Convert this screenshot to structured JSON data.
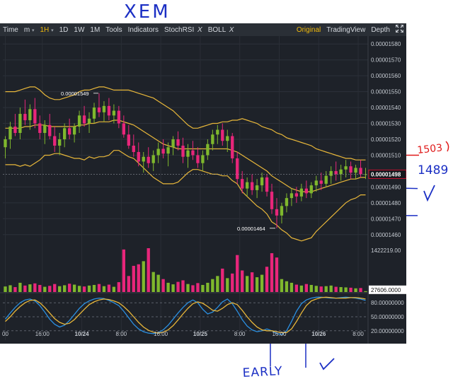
{
  "toolbar": {
    "time_label": "Time",
    "interval_m": "m",
    "interval_m_caret": "▾",
    "interval_1h": "1H",
    "interval_1h_caret": "▾",
    "interval_1d": "1D",
    "interval_1w": "1W",
    "interval_1mo": "1M",
    "tools_label": "Tools",
    "indicators_label": "Indicators",
    "stochrsi_label": "StochRSI",
    "stochrsi_close": "X",
    "boll_label": "BOLL",
    "boll_close": "X",
    "original_label": "Original",
    "tradingview_label": "TradingView",
    "depth_label": "Depth",
    "expand_icon": "expand-icon"
  },
  "annotations": {
    "title": "XEM",
    "label_1503": "1503",
    "label_1489": "1489",
    "label_early": "EARLY"
  },
  "colors": {
    "background": "#1e2229",
    "toolbar": "#2a2f36",
    "up": "#7fb82d",
    "down": "#e8267a",
    "boll_band": "#e8b73a",
    "stoch_k": "#2b8fe0",
    "stoch_d": "#e8b73a",
    "current_price_box": "#c8102e",
    "ink": "#1b2fc4",
    "ink_red": "#e01a1a"
  },
  "chart_data": {
    "type": "candlestick",
    "symbol": "XEM",
    "interval": "1H",
    "price_axis": {
      "range": [
        1.455e-05,
        1.585e-05
      ],
      "ticks": [
        "0.00001580",
        "0.00001570",
        "0.00001560",
        "0.00001550",
        "0.00001540",
        "0.00001530",
        "0.00001520",
        "0.00001510",
        "0.00001490",
        "0.00001480",
        "0.00001470",
        "0.00001460"
      ],
      "tick_values": [
        1.58e-05,
        1.57e-05,
        1.56e-05,
        1.55e-05,
        1.54e-05,
        1.53e-05,
        1.52e-05,
        1.51e-05,
        1.49e-05,
        1.48e-05,
        1.47e-05,
        1.46e-05
      ]
    },
    "current_price": "0.00001498",
    "current_price_value": 1.498e-05,
    "high_label": "0.00001549",
    "high_value": 1.549e-05,
    "low_label": "0.00001464",
    "low_value": 1.464e-05,
    "x_axis_labels": [
      "00",
      "16:00",
      "10/24",
      "8:00",
      "16:00",
      "10/25",
      "8:00",
      "16:00",
      "10/26",
      "8:00"
    ],
    "x_axis_label_index": [
      0,
      7.5,
      15.5,
      23.5,
      31.5,
      39.5,
      47.5,
      55.5,
      63.5,
      71.5
    ],
    "volume": {
      "max_label": "1422219.00",
      "max_value": 1422219,
      "current_label": "27606.0000",
      "current_value": 27606
    },
    "stoch_rsi": {
      "ticks": [
        "80.00000000",
        "50.00000000",
        "20.00000000"
      ],
      "tick_values": [
        80,
        50,
        20
      ],
      "range": [
        0,
        100
      ]
    },
    "candles": [
      {
        "o": 1.515e-05,
        "h": 1.522e-05,
        "l": 1.508e-05,
        "c": 1.52e-05,
        "v": 180000
      },
      {
        "o": 1.52e-05,
        "h": 1.531e-05,
        "l": 1.514e-05,
        "c": 1.528e-05,
        "v": 220000
      },
      {
        "o": 1.528e-05,
        "h": 1.536e-05,
        "l": 1.522e-05,
        "c": 1.524e-05,
        "v": 160000
      },
      {
        "o": 1.524e-05,
        "h": 1.54e-05,
        "l": 1.52e-05,
        "c": 1.536e-05,
        "v": 300000
      },
      {
        "o": 1.536e-05,
        "h": 1.545e-05,
        "l": 1.529e-05,
        "c": 1.532e-05,
        "v": 210000
      },
      {
        "o": 1.532e-05,
        "h": 1.542e-05,
        "l": 1.526e-05,
        "c": 1.539e-05,
        "v": 250000
      },
      {
        "o": 1.539e-05,
        "h": 1.546e-05,
        "l": 1.527e-05,
        "c": 1.53e-05,
        "v": 280000
      },
      {
        "o": 1.53e-05,
        "h": 1.535e-05,
        "l": 1.52e-05,
        "c": 1.524e-05,
        "v": 230000
      },
      {
        "o": 1.524e-05,
        "h": 1.532e-05,
        "l": 1.517e-05,
        "c": 1.529e-05,
        "v": 170000
      },
      {
        "o": 1.529e-05,
        "h": 1.536e-05,
        "l": 1.52e-05,
        "c": 1.522e-05,
        "v": 200000
      },
      {
        "o": 1.522e-05,
        "h": 1.528e-05,
        "l": 1.512e-05,
        "c": 1.516e-05,
        "v": 260000
      },
      {
        "o": 1.516e-05,
        "h": 1.524e-05,
        "l": 1.51e-05,
        "c": 1.52e-05,
        "v": 190000
      },
      {
        "o": 1.52e-05,
        "h": 1.53e-05,
        "l": 1.515e-05,
        "c": 1.527e-05,
        "v": 220000
      },
      {
        "o": 1.527e-05,
        "h": 1.533e-05,
        "l": 1.52e-05,
        "c": 1.523e-05,
        "v": 270000
      },
      {
        "o": 1.523e-05,
        "h": 1.53e-05,
        "l": 1.518e-05,
        "c": 1.528e-05,
        "v": 240000
      },
      {
        "o": 1.528e-05,
        "h": 1.538e-05,
        "l": 1.524e-05,
        "c": 1.535e-05,
        "v": 200000
      },
      {
        "o": 1.535e-05,
        "h": 1.541e-05,
        "l": 1.528e-05,
        "c": 1.53e-05,
        "v": 180000
      },
      {
        "o": 1.53e-05,
        "h": 1.537e-05,
        "l": 1.524e-05,
        "c": 1.533e-05,
        "v": 210000
      },
      {
        "o": 1.533e-05,
        "h": 1.543e-05,
        "l": 1.53e-05,
        "c": 1.54e-05,
        "v": 230000
      },
      {
        "o": 1.54e-05,
        "h": 1.549e-05,
        "l": 1.534e-05,
        "c": 1.537e-05,
        "v": 260000
      },
      {
        "o": 1.537e-05,
        "h": 1.544e-05,
        "l": 1.531e-05,
        "c": 1.541e-05,
        "v": 190000
      },
      {
        "o": 1.541e-05,
        "h": 1.546e-05,
        "l": 1.532e-05,
        "c": 1.535e-05,
        "v": 240000
      },
      {
        "o": 1.535e-05,
        "h": 1.542e-05,
        "l": 1.53e-05,
        "c": 1.538e-05,
        "v": 170000
      },
      {
        "o": 1.538e-05,
        "h": 1.541e-05,
        "l": 1.527e-05,
        "c": 1.53e-05,
        "v": 320000
      },
      {
        "o": 1.53e-05,
        "h": 1.535e-05,
        "l": 1.521e-05,
        "c": 1.523e-05,
        "v": 1380000
      },
      {
        "o": 1.523e-05,
        "h": 1.529e-05,
        "l": 1.514e-05,
        "c": 1.516e-05,
        "v": 520000
      },
      {
        "o": 1.516e-05,
        "h": 1.523e-05,
        "l": 1.509e-05,
        "c": 1.512e-05,
        "v": 850000
      },
      {
        "o": 1.512e-05,
        "h": 1.518e-05,
        "l": 1.503e-05,
        "c": 1.506e-05,
        "v": 900000
      },
      {
        "o": 1.506e-05,
        "h": 1.512e-05,
        "l": 1.499e-05,
        "c": 1.509e-05,
        "v": 1000000
      },
      {
        "o": 1.509e-05,
        "h": 1.515e-05,
        "l": 1.502e-05,
        "c": 1.505e-05,
        "v": 1422219
      },
      {
        "o": 1.505e-05,
        "h": 1.513e-05,
        "l": 1.5e-05,
        "c": 1.51e-05,
        "v": 650000
      },
      {
        "o": 1.51e-05,
        "h": 1.518e-05,
        "l": 1.505e-05,
        "c": 1.514e-05,
        "v": 560000
      },
      {
        "o": 1.514e-05,
        "h": 1.52e-05,
        "l": 1.508e-05,
        "c": 1.511e-05,
        "v": 420000
      },
      {
        "o": 1.511e-05,
        "h": 1.518e-05,
        "l": 1.503e-05,
        "c": 1.515e-05,
        "v": 300000
      },
      {
        "o": 1.515e-05,
        "h": 1.522e-05,
        "l": 1.51e-05,
        "c": 1.52e-05,
        "v": 250000
      },
      {
        "o": 1.52e-05,
        "h": 1.525e-05,
        "l": 1.513e-05,
        "c": 1.516e-05,
        "v": 330000
      },
      {
        "o": 1.516e-05,
        "h": 1.521e-05,
        "l": 1.505e-05,
        "c": 1.509e-05,
        "v": 380000
      },
      {
        "o": 1.509e-05,
        "h": 1.517e-05,
        "l": 1.502e-05,
        "c": 1.513e-05,
        "v": 260000
      },
      {
        "o": 1.513e-05,
        "h": 1.519e-05,
        "l": 1.507e-05,
        "c": 1.51e-05,
        "v": 220000
      },
      {
        "o": 1.51e-05,
        "h": 1.515e-05,
        "l": 1.502e-05,
        "c": 1.505e-05,
        "v": 290000
      },
      {
        "o": 1.505e-05,
        "h": 1.513e-05,
        "l": 1.5e-05,
        "c": 1.51e-05,
        "v": 230000
      },
      {
        "o": 1.51e-05,
        "h": 1.52e-05,
        "l": 1.507e-05,
        "c": 1.517e-05,
        "v": 300000
      },
      {
        "o": 1.517e-05,
        "h": 1.526e-05,
        "l": 1.513e-05,
        "c": 1.523e-05,
        "v": 420000
      },
      {
        "o": 1.523e-05,
        "h": 1.529e-05,
        "l": 1.517e-05,
        "c": 1.526e-05,
        "v": 520000
      },
      {
        "o": 1.526e-05,
        "h": 1.53e-05,
        "l": 1.516e-05,
        "c": 1.519e-05,
        "v": 760000
      },
      {
        "o": 1.519e-05,
        "h": 1.526e-05,
        "l": 1.512e-05,
        "c": 1.522e-05,
        "v": 450000
      },
      {
        "o": 1.522e-05,
        "h": 1.524e-05,
        "l": 1.505e-05,
        "c": 1.508e-05,
        "v": 600000
      },
      {
        "o": 1.508e-05,
        "h": 1.512e-05,
        "l": 1.492e-05,
        "c": 1.495e-05,
        "v": 1200000
      },
      {
        "o": 1.495e-05,
        "h": 1.5e-05,
        "l": 1.486e-05,
        "c": 1.489e-05,
        "v": 700000
      },
      {
        "o": 1.489e-05,
        "h": 1.496e-05,
        "l": 1.484e-05,
        "c": 1.493e-05,
        "v": 520000
      },
      {
        "o": 1.493e-05,
        "h": 1.498e-05,
        "l": 1.485e-05,
        "c": 1.488e-05,
        "v": 640000
      },
      {
        "o": 1.488e-05,
        "h": 1.495e-05,
        "l": 1.483e-05,
        "c": 1.491e-05,
        "v": 480000
      },
      {
        "o": 1.491e-05,
        "h": 1.499e-05,
        "l": 1.487e-05,
        "c": 1.496e-05,
        "v": 560000
      },
      {
        "o": 1.496e-05,
        "h": 1.498e-05,
        "l": 1.484e-05,
        "c": 1.487e-05,
        "v": 820000
      },
      {
        "o": 1.487e-05,
        "h": 1.492e-05,
        "l": 1.473e-05,
        "c": 1.476e-05,
        "v": 1260000
      },
      {
        "o": 1.476e-05,
        "h": 1.483e-05,
        "l": 1.464e-05,
        "c": 1.472e-05,
        "v": 1120000
      },
      {
        "o": 1.472e-05,
        "h": 1.48e-05,
        "l": 1.467e-05,
        "c": 1.478e-05,
        "v": 420000
      },
      {
        "o": 1.478e-05,
        "h": 1.486e-05,
        "l": 1.474e-05,
        "c": 1.483e-05,
        "v": 350000
      },
      {
        "o": 1.483e-05,
        "h": 1.489e-05,
        "l": 1.478e-05,
        "c": 1.486e-05,
        "v": 300000
      },
      {
        "o": 1.486e-05,
        "h": 1.49e-05,
        "l": 1.48e-05,
        "c": 1.484e-05,
        "v": 240000
      },
      {
        "o": 1.484e-05,
        "h": 1.492e-05,
        "l": 1.481e-05,
        "c": 1.489e-05,
        "v": 210000
      },
      {
        "o": 1.489e-05,
        "h": 1.494e-05,
        "l": 1.483e-05,
        "c": 1.486e-05,
        "v": 260000
      },
      {
        "o": 1.486e-05,
        "h": 1.493e-05,
        "l": 1.483e-05,
        "c": 1.491e-05,
        "v": 230000
      },
      {
        "o": 1.491e-05,
        "h": 1.497e-05,
        "l": 1.487e-05,
        "c": 1.494e-05,
        "v": 200000
      },
      {
        "o": 1.494e-05,
        "h": 1.499e-05,
        "l": 1.488e-05,
        "c": 1.492e-05,
        "v": 180000
      },
      {
        "o": 1.492e-05,
        "h": 1.5e-05,
        "l": 1.49e-05,
        "c": 1.497e-05,
        "v": 190000
      },
      {
        "o": 1.497e-05,
        "h": 1.503e-05,
        "l": 1.492e-05,
        "c": 1.5e-05,
        "v": 210000
      },
      {
        "o": 1.5e-05,
        "h": 1.506e-05,
        "l": 1.494e-05,
        "c": 1.498e-05,
        "v": 170000
      },
      {
        "o": 1.498e-05,
        "h": 1.504e-05,
        "l": 1.494e-05,
        "c": 1.501e-05,
        "v": 160000
      },
      {
        "o": 1.501e-05,
        "h": 1.507e-05,
        "l": 1.496e-05,
        "c": 1.503e-05,
        "v": 150000
      },
      {
        "o": 1.503e-05,
        "h": 1.506e-05,
        "l": 1.495e-05,
        "c": 1.499e-05,
        "v": 140000
      },
      {
        "o": 1.499e-05,
        "h": 1.504e-05,
        "l": 1.495e-05,
        "c": 1.502e-05,
        "v": 120000
      },
      {
        "o": 1.502e-05,
        "h": 1.507e-05,
        "l": 1.496e-05,
        "c": 1.498e-05,
        "v": 130000
      },
      {
        "o": 1.498e-05,
        "h": 1.502e-05,
        "l": 1.495e-05,
        "c": 1.498e-05,
        "v": 27606
      }
    ],
    "boll": {
      "upper": [
        1.55e-05,
        1.55e-05,
        1.55e-05,
        1.551e-05,
        1.552e-05,
        1.553e-05,
        1.553e-05,
        1.551e-05,
        1.548e-05,
        1.546e-05,
        1.545e-05,
        1.545e-05,
        1.546e-05,
        1.547e-05,
        1.548e-05,
        1.55e-05,
        1.551e-05,
        1.551e-05,
        1.552e-05,
        1.553e-05,
        1.553e-05,
        1.552e-05,
        1.551e-05,
        1.551e-05,
        1.551e-05,
        1.551e-05,
        1.55e-05,
        1.549e-05,
        1.548e-05,
        1.547e-05,
        1.546e-05,
        1.544e-05,
        1.542e-05,
        1.54e-05,
        1.538e-05,
        1.535e-05,
        1.532e-05,
        1.529e-05,
        1.527e-05,
        1.527e-05,
        1.528e-05,
        1.529e-05,
        1.53e-05,
        1.53e-05,
        1.531e-05,
        1.531e-05,
        1.532e-05,
        1.532e-05,
        1.533e-05,
        1.532e-05,
        1.531e-05,
        1.53e-05,
        1.528e-05,
        1.527e-05,
        1.526e-05,
        1.524e-05,
        1.523e-05,
        1.521e-05,
        1.52e-05,
        1.519e-05,
        1.518e-05,
        1.517e-05,
        1.516e-05,
        1.514e-05,
        1.513e-05,
        1.512e-05,
        1.511e-05,
        1.51e-05,
        1.509e-05,
        1.508e-05,
        1.508e-05,
        1.507e-05,
        1.507e-05,
        1.507e-05
      ],
      "middle": [
        1.527e-05,
        1.527e-05,
        1.527e-05,
        1.527e-05,
        1.528e-05,
        1.528e-05,
        1.529e-05,
        1.529e-05,
        1.529e-05,
        1.528e-05,
        1.528e-05,
        1.528e-05,
        1.528e-05,
        1.528e-05,
        1.528e-05,
        1.529e-05,
        1.529e-05,
        1.53e-05,
        1.53e-05,
        1.531e-05,
        1.531e-05,
        1.531e-05,
        1.532e-05,
        1.532e-05,
        1.531e-05,
        1.53e-05,
        1.529e-05,
        1.527e-05,
        1.525e-05,
        1.523e-05,
        1.521e-05,
        1.519e-05,
        1.517e-05,
        1.516e-05,
        1.515e-05,
        1.514e-05,
        1.514e-05,
        1.514e-05,
        1.514e-05,
        1.514e-05,
        1.514e-05,
        1.514e-05,
        1.514e-05,
        1.514e-05,
        1.514e-05,
        1.514e-05,
        1.513e-05,
        1.512e-05,
        1.51e-05,
        1.508e-05,
        1.506e-05,
        1.504e-05,
        1.502e-05,
        1.5e-05,
        1.497e-05,
        1.495e-05,
        1.493e-05,
        1.491e-05,
        1.489e-05,
        1.488e-05,
        1.487e-05,
        1.487e-05,
        1.487e-05,
        1.488e-05,
        1.489e-05,
        1.49e-05,
        1.491e-05,
        1.492e-05,
        1.493e-05,
        1.494e-05,
        1.495e-05,
        1.495e-05,
        1.496e-05,
        1.496e-05
      ],
      "lower": [
        1.504e-05,
        1.504e-05,
        1.504e-05,
        1.503e-05,
        1.504e-05,
        1.503e-05,
        1.505e-05,
        1.507e-05,
        1.51e-05,
        1.51e-05,
        1.511e-05,
        1.511e-05,
        1.51e-05,
        1.509e-05,
        1.508e-05,
        1.508e-05,
        1.507e-05,
        1.509e-05,
        1.508e-05,
        1.509e-05,
        1.509e-05,
        1.51e-05,
        1.513e-05,
        1.513e-05,
        1.511e-05,
        1.509e-05,
        1.508e-05,
        1.505e-05,
        1.502e-05,
        1.499e-05,
        1.496e-05,
        1.494e-05,
        1.492e-05,
        1.492e-05,
        1.492e-05,
        1.493e-05,
        1.496e-05,
        1.499e-05,
        1.501e-05,
        1.501e-05,
        1.5e-05,
        1.499e-05,
        1.498e-05,
        1.498e-05,
        1.497e-05,
        1.497e-05,
        1.494e-05,
        1.492e-05,
        1.487e-05,
        1.484e-05,
        1.481e-05,
        1.478e-05,
        1.476e-05,
        1.473e-05,
        1.468e-05,
        1.466e-05,
        1.463e-05,
        1.461e-05,
        1.458e-05,
        1.457e-05,
        1.456e-05,
        1.457e-05,
        1.458e-05,
        1.462e-05,
        1.465e-05,
        1.468e-05,
        1.471e-05,
        1.474e-05,
        1.477e-05,
        1.48e-05,
        1.482e-05,
        1.483e-05,
        1.485e-05,
        1.485e-05
      ]
    },
    "stoch_k": [
      45,
      58,
      70,
      80,
      86,
      88,
      84,
      74,
      60,
      45,
      34,
      28,
      32,
      42,
      55,
      68,
      78,
      84,
      88,
      90,
      89,
      85,
      80,
      74,
      62,
      48,
      34,
      24,
      18,
      15,
      14,
      16,
      22,
      32,
      45,
      58,
      70,
      80,
      86,
      80,
      66,
      56,
      60,
      70,
      82,
      88,
      78,
      62,
      44,
      30,
      22,
      18,
      20,
      24,
      20,
      14,
      12,
      20,
      40,
      62,
      78,
      86,
      90,
      92,
      92,
      91,
      90,
      90,
      91,
      92,
      91,
      90,
      88,
      85
    ],
    "stoch_d": [
      40,
      50,
      62,
      72,
      80,
      85,
      86,
      80,
      70,
      58,
      46,
      38,
      34,
      36,
      44,
      55,
      66,
      76,
      82,
      86,
      88,
      87,
      84,
      80,
      72,
      62,
      50,
      38,
      28,
      21,
      17,
      15,
      17,
      22,
      31,
      43,
      56,
      68,
      78,
      82,
      79,
      72,
      64,
      62,
      68,
      76,
      80,
      76,
      64,
      50,
      38,
      28,
      22,
      20,
      20,
      18,
      16,
      16,
      24,
      40,
      58,
      74,
      84,
      88,
      91,
      92,
      91,
      90,
      90,
      90,
      91,
      91,
      90,
      88
    ]
  }
}
